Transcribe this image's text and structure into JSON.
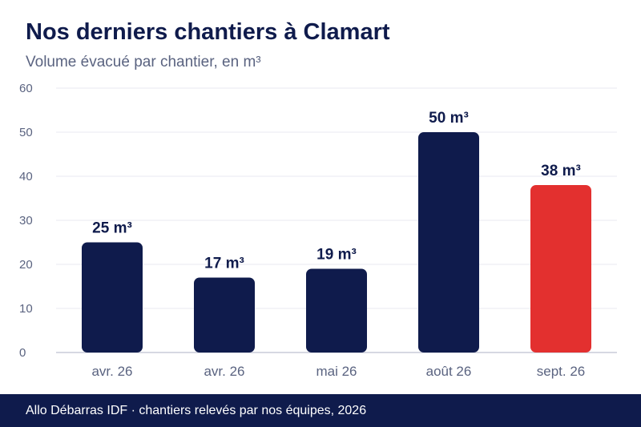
{
  "title": "Nos derniers chantiers à Clamart",
  "subtitle": "Volume évacué par chantier, en m³",
  "footer": "Allo Débarras IDF · chantiers relevés par nos équipes, 2026",
  "colors": {
    "bar": "#0f1b4c",
    "highlight": "#e3302f",
    "grid": "#e8eaf0",
    "axis_text": "#5a6380",
    "title": "#0f1b4c"
  },
  "chart_data": {
    "type": "bar",
    "categories": [
      "avr. 26",
      "avr. 26",
      "mai 26",
      "août 26",
      "sept. 26"
    ],
    "values": [
      25,
      17,
      19,
      50,
      38
    ],
    "data_labels": [
      "25 m³",
      "17 m³",
      "19 m³",
      "50 m³",
      "38 m³"
    ],
    "highlight_index": 4,
    "ylim": [
      0,
      60
    ],
    "yticks": [
      0,
      10,
      20,
      30,
      40,
      50,
      60
    ],
    "grid": true
  }
}
